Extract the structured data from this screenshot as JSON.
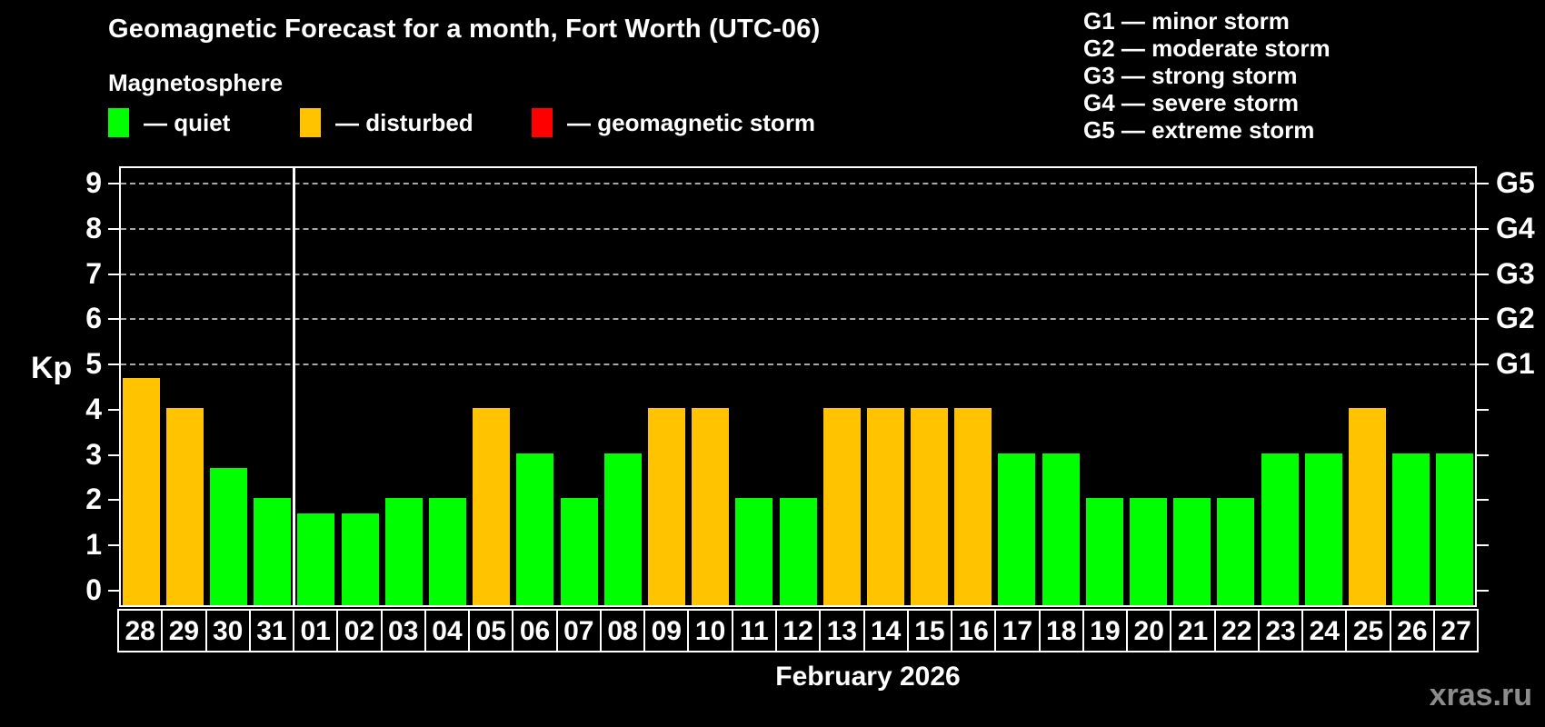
{
  "header": {
    "title": "Geomagnetic Forecast for a month, Fort Worth (UTC-06)",
    "subtitle": "Magnetosphere"
  },
  "legend": {
    "items": [
      {
        "key": "quiet",
        "label": "— quiet"
      },
      {
        "key": "disturbed",
        "label": "— disturbed"
      },
      {
        "key": "storm",
        "label": "— geomagnetic storm"
      }
    ]
  },
  "g_legend": [
    "G1 — minor storm",
    "G2 — moderate storm",
    "G3 — strong storm",
    "G4 — severe storm",
    "G5 — extreme storm"
  ],
  "colors": {
    "background": "#000000",
    "quiet": "#00FF00",
    "disturbed": "#FFC300",
    "storm": "#FF0000",
    "axis": "#FFFFFF",
    "grid": "#A9A9A9",
    "text": "#FFFFFF",
    "watermark": "#8C8C8C"
  },
  "y_axis": {
    "label": "Kp"
  },
  "x_axis": {
    "month_label": "February 2026"
  },
  "watermark": "xras.ru",
  "chart_data": {
    "type": "bar",
    "title": "Geomagnetic Forecast for a month, Fort Worth (UTC-06)",
    "subtitle": "Magnetosphere",
    "xlabel": "February 2026",
    "ylabel": "Kp",
    "ylim": [
      0,
      9
    ],
    "yticks": [
      0,
      1,
      2,
      3,
      4,
      5,
      6,
      7,
      8,
      9
    ],
    "grid": "horizontal dashed lines at Kp 5..9 only",
    "g_levels": [
      {
        "kp": 5,
        "label": "G1"
      },
      {
        "kp": 6,
        "label": "G2"
      },
      {
        "kp": 7,
        "label": "G3"
      },
      {
        "kp": 8,
        "label": "G4"
      },
      {
        "kp": 9,
        "label": "G5"
      }
    ],
    "categories": [
      "28",
      "29",
      "30",
      "31",
      "01",
      "02",
      "03",
      "04",
      "05",
      "06",
      "07",
      "08",
      "09",
      "10",
      "11",
      "12",
      "13",
      "14",
      "15",
      "16",
      "17",
      "18",
      "19",
      "20",
      "21",
      "22",
      "23",
      "24",
      "25",
      "26",
      "27"
    ],
    "values": [
      4.67,
      4,
      2.67,
      2,
      1.67,
      1.67,
      2,
      2,
      4,
      3,
      2,
      3,
      4,
      4,
      2,
      2,
      4,
      4,
      4,
      4,
      3,
      3,
      2,
      2,
      2,
      2,
      3,
      3,
      4,
      3,
      3
    ],
    "levels": [
      "disturbed",
      "disturbed",
      "quiet",
      "quiet",
      "quiet",
      "quiet",
      "quiet",
      "quiet",
      "disturbed",
      "quiet",
      "quiet",
      "quiet",
      "disturbed",
      "disturbed",
      "quiet",
      "quiet",
      "disturbed",
      "disturbed",
      "disturbed",
      "disturbed",
      "quiet",
      "quiet",
      "quiet",
      "quiet",
      "quiet",
      "quiet",
      "quiet",
      "quiet",
      "disturbed",
      "quiet",
      "quiet"
    ],
    "month_boundary_after_index": 3,
    "legend_entries": [
      "quiet",
      "disturbed",
      "geomagnetic storm"
    ]
  }
}
